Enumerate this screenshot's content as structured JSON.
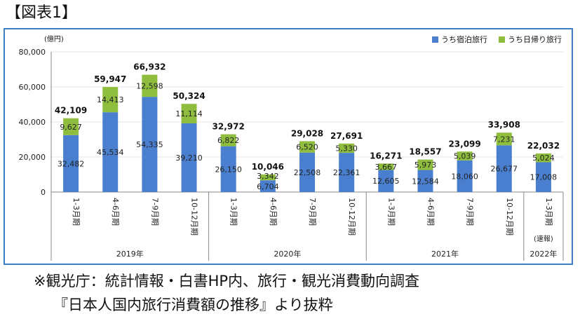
{
  "figure_title": "【図表1】",
  "unit_label": "(億円)",
  "legend": [
    {
      "label": "うち宿泊旅行",
      "color": "#4a7fd0"
    },
    {
      "label": "うち日帰り旅行",
      "color": "#8fbe3f"
    }
  ],
  "source_line1": "※観光庁：統計情報・白書HP内、旅行・観光消費動向調査",
  "source_line2": "『日本人国内旅行消費額の推移』より抜粋",
  "chart_data": {
    "type": "bar",
    "stacked": true,
    "ylim": [
      0,
      80000
    ],
    "yticks": [
      "0",
      "20,000",
      "40,000",
      "60,000",
      "80,000"
    ],
    "ytick_values": [
      0,
      20000,
      40000,
      60000,
      80000
    ],
    "categories": [
      "1-3月期",
      "4-6月期",
      "7-9月期",
      "10-12月期",
      "1-3月期",
      "4-6月期",
      "7-9月期",
      "10-12月期",
      "1-3月期",
      "4-6月期",
      "7-9月期",
      "10-12月期",
      "1-3月期"
    ],
    "sub_note": "(速報)",
    "year_groups": [
      {
        "label": "2019年",
        "count": 4
      },
      {
        "label": "2020年",
        "count": 4
      },
      {
        "label": "2021年",
        "count": 4
      },
      {
        "label": "2022年",
        "count": 1
      }
    ],
    "series": [
      {
        "name": "うち宿泊旅行",
        "values": [
          32482,
          45534,
          54335,
          39210,
          26150,
          6704,
          22508,
          22361,
          12605,
          12584,
          18060,
          26677,
          17008
        ],
        "labels": [
          "32,482",
          "45,534",
          "54,335",
          "39,210",
          "26,150",
          "6,704",
          "22,508",
          "22,361",
          "12,605",
          "12,584",
          "18,060",
          "26,677",
          "17,008"
        ]
      },
      {
        "name": "うち日帰り旅行",
        "values": [
          9627,
          14413,
          12598,
          11114,
          6822,
          3342,
          6520,
          5330,
          3667,
          5973,
          5039,
          7231,
          5024
        ],
        "labels": [
          "9,627",
          "14,413",
          "12,598",
          "11,114",
          "6,822",
          "3,342",
          "6,520",
          "5,330",
          "3,667",
          "5,973",
          "5,039",
          "7,231",
          "5,024"
        ]
      }
    ],
    "totals": [
      "42,109",
      "59,947",
      "66,932",
      "50,324",
      "32,972",
      "10,046",
      "29,028",
      "27,691",
      "16,271",
      "18,557",
      "23,099",
      "33,908",
      "22,032"
    ]
  }
}
